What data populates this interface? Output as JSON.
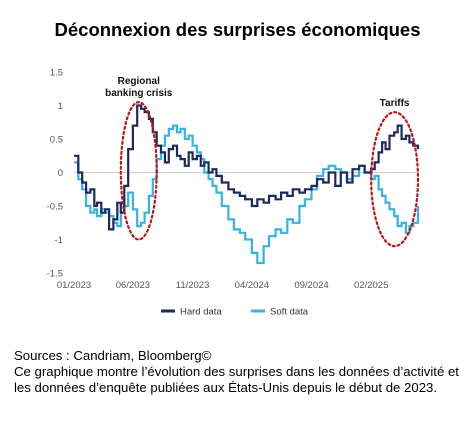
{
  "title": "Déconnexion des surprises économiques",
  "footer": {
    "sources": "Sources : Candriam, Bloomberg©",
    "description": "Ce graphique montre l’évolution des surprises dans les données d’activité et les données d’enquête publiées aux États-Unis depuis le début de 2023."
  },
  "chart_data": {
    "type": "line",
    "xlabel": "",
    "ylabel": "",
    "x_ticks": [
      "01/2023",
      "06/2023",
      "11/2023",
      "04/2024",
      "09/2024",
      "02/2025"
    ],
    "y_ticks": [
      "1.5",
      "1",
      "0.5",
      "0",
      "-0.5",
      "-1",
      "-1.5"
    ],
    "ylim": [
      -1.5,
      1.5
    ],
    "xlim": [
      "2023-01",
      "2025-06"
    ],
    "grid": false,
    "legend_position": "bottom",
    "annotations": [
      {
        "text_lines": [
          "Regional",
          "banking crisis"
        ],
        "x_range": [
          "2023-05",
          "2023-08"
        ],
        "y_range": [
          -1.0,
          1.05
        ]
      },
      {
        "text_lines": [
          "Tariffs"
        ],
        "x_range": [
          "2025-02",
          "2025-06"
        ],
        "y_range": [
          -1.1,
          0.9
        ]
      }
    ],
    "series": [
      {
        "name": "Hard data",
        "color": "#1d2b5c",
        "x": [
          "2023-01-01",
          "2023-01-12",
          "2023-01-22",
          "2023-02-01",
          "2023-02-12",
          "2023-02-22",
          "2023-03-01",
          "2023-03-12",
          "2023-03-22",
          "2023-04-01",
          "2023-04-12",
          "2023-04-22",
          "2023-05-01",
          "2023-05-10",
          "2023-05-20",
          "2023-06-01",
          "2023-06-12",
          "2023-06-22",
          "2023-07-01",
          "2023-07-12",
          "2023-07-22",
          "2023-08-01",
          "2023-08-12",
          "2023-08-22",
          "2023-09-01",
          "2023-09-12",
          "2023-09-22",
          "2023-10-01",
          "2023-10-12",
          "2023-10-22",
          "2023-11-01",
          "2023-11-12",
          "2023-11-22",
          "2023-12-01",
          "2023-12-12",
          "2023-12-22",
          "2024-01-01",
          "2024-01-15",
          "2024-02-01",
          "2024-02-15",
          "2024-03-01",
          "2024-03-15",
          "2024-04-01",
          "2024-04-15",
          "2024-05-01",
          "2024-05-15",
          "2024-06-01",
          "2024-06-15",
          "2024-07-01",
          "2024-07-15",
          "2024-08-01",
          "2024-08-15",
          "2024-09-01",
          "2024-09-15",
          "2024-10-01",
          "2024-10-15",
          "2024-11-01",
          "2024-11-15",
          "2024-12-01",
          "2024-12-15",
          "2025-01-01",
          "2025-01-15",
          "2025-02-01",
          "2025-02-10",
          "2025-02-20",
          "2025-03-01",
          "2025-03-10",
          "2025-03-20",
          "2025-04-01",
          "2025-04-10",
          "2025-04-20",
          "2025-05-01",
          "2025-05-10",
          "2025-05-20",
          "2025-06-01"
        ],
        "values": [
          0.25,
          0.0,
          -0.15,
          -0.3,
          -0.25,
          -0.5,
          -0.45,
          -0.6,
          -0.55,
          -0.85,
          -0.7,
          -0.45,
          -0.6,
          -0.2,
          0.35,
          0.7,
          1.0,
          0.95,
          0.9,
          0.8,
          0.6,
          0.4,
          0.3,
          0.15,
          0.35,
          0.4,
          0.25,
          0.2,
          0.1,
          0.3,
          0.2,
          0.25,
          0.1,
          0.15,
          0.0,
          0.05,
          -0.05,
          -0.15,
          -0.25,
          -0.3,
          -0.35,
          -0.4,
          -0.5,
          -0.4,
          -0.45,
          -0.35,
          -0.4,
          -0.3,
          -0.35,
          -0.25,
          -0.3,
          -0.25,
          -0.2,
          -0.1,
          -0.15,
          0.0,
          -0.2,
          0.0,
          -0.15,
          0.05,
          0.1,
          0.0,
          0.05,
          0.15,
          0.3,
          0.45,
          0.35,
          0.55,
          0.6,
          0.7,
          0.5,
          0.55,
          0.45,
          0.4,
          0.35
        ]
      },
      {
        "name": "Soft data",
        "color": "#34b3e4",
        "x": [
          "2023-01-01",
          "2023-01-12",
          "2023-01-22",
          "2023-02-01",
          "2023-02-12",
          "2023-02-22",
          "2023-03-01",
          "2023-03-12",
          "2023-03-22",
          "2023-04-01",
          "2023-04-12",
          "2023-04-22",
          "2023-05-01",
          "2023-05-10",
          "2023-05-20",
          "2023-06-01",
          "2023-06-12",
          "2023-06-22",
          "2023-07-01",
          "2023-07-12",
          "2023-07-22",
          "2023-08-01",
          "2023-08-12",
          "2023-08-22",
          "2023-09-01",
          "2023-09-12",
          "2023-09-22",
          "2023-10-01",
          "2023-10-12",
          "2023-10-22",
          "2023-11-01",
          "2023-11-12",
          "2023-11-22",
          "2023-12-01",
          "2023-12-12",
          "2023-12-22",
          "2024-01-01",
          "2024-01-15",
          "2024-02-01",
          "2024-02-15",
          "2024-03-01",
          "2024-03-15",
          "2024-04-01",
          "2024-04-15",
          "2024-05-01",
          "2024-05-15",
          "2024-06-01",
          "2024-06-15",
          "2024-07-01",
          "2024-07-15",
          "2024-08-01",
          "2024-08-15",
          "2024-09-01",
          "2024-09-15",
          "2024-10-01",
          "2024-10-15",
          "2024-11-01",
          "2024-11-15",
          "2024-12-01",
          "2024-12-15",
          "2025-01-01",
          "2025-01-15",
          "2025-02-01",
          "2025-02-10",
          "2025-02-20",
          "2025-03-01",
          "2025-03-10",
          "2025-03-20",
          "2025-04-01",
          "2025-04-10",
          "2025-04-20",
          "2025-05-01",
          "2025-05-10",
          "2025-05-20",
          "2025-06-01"
        ],
        "values": [
          0.15,
          -0.1,
          -0.25,
          -0.5,
          -0.6,
          -0.55,
          -0.65,
          -0.55,
          -0.6,
          -0.65,
          -0.75,
          -0.8,
          -0.6,
          -0.5,
          -0.3,
          -0.55,
          -0.8,
          -0.75,
          -0.6,
          -0.35,
          -0.1,
          0.2,
          0.4,
          0.55,
          0.65,
          0.7,
          0.6,
          0.65,
          0.5,
          0.55,
          0.4,
          0.3,
          0.2,
          0.0,
          -0.1,
          -0.2,
          -0.3,
          -0.5,
          -0.7,
          -0.85,
          -0.9,
          -1.0,
          -1.2,
          -1.35,
          -1.1,
          -0.95,
          -0.85,
          -0.9,
          -0.7,
          -0.75,
          -0.5,
          -0.4,
          -0.25,
          -0.05,
          0.05,
          0.1,
          0.05,
          0.0,
          -0.1,
          -0.05,
          0.1,
          0.0,
          -0.1,
          -0.05,
          -0.25,
          -0.35,
          -0.45,
          -0.55,
          -0.65,
          -0.8,
          -0.75,
          -0.9,
          -0.8,
          -0.75,
          -0.5
        ]
      }
    ]
  }
}
